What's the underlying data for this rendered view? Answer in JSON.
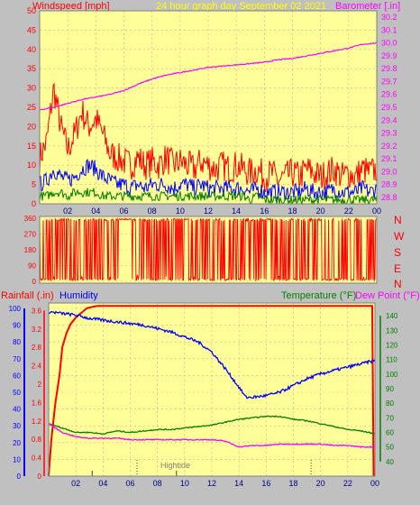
{
  "header": {
    "left": "Windspeed [mph]",
    "center": "24 hour graph day   September 02 2021",
    "right": "Barometer [.in]"
  },
  "compass": [
    "N",
    "W",
    "S",
    "E",
    "N"
  ],
  "bottom_header": {
    "rainfall": "Rainfall (.in)",
    "humidity": "Humidity",
    "temperature": "Temperature (°F)",
    "dewpoint": "Dew Point (°F)"
  },
  "hightide_label": "Hightide",
  "colors": {
    "panel_bg": "#ffff99",
    "frame": "#c0c0c0",
    "wind_gust": "#ff0000",
    "wind_avg": "#0000ff",
    "wind_low": "#008000",
    "barometer": "#ff00ff",
    "direction": "#ff0000",
    "rainfall": "#ff0000",
    "humidity": "#0000ff",
    "temperature": "#008000",
    "dewpoint": "#ff00ff"
  },
  "chart_data": [
    {
      "type": "line",
      "title": "24 hour graph day   September 02 2021",
      "xlabel": "",
      "x_ticks": [
        "02",
        "04",
        "06",
        "08",
        "10",
        "12",
        "14",
        "16",
        "18",
        "20",
        "22",
        "00"
      ],
      "xlim": [
        0,
        24
      ],
      "ylabel": "Windspeed [mph]",
      "y_ticks": [
        0,
        5,
        10,
        15,
        20,
        25,
        30,
        35,
        40,
        45,
        50
      ],
      "ylim": [
        0,
        50
      ],
      "y2label": "Barometer [.in]",
      "y2_ticks": [
        28.8,
        28.9,
        29.0,
        29.1,
        29.2,
        29.3,
        29.4,
        29.5,
        29.6,
        29.7,
        29.8,
        29.9,
        30.0,
        30.1,
        30.2
      ],
      "y2lim": [
        28.75,
        30.25
      ],
      "grid": true,
      "series": [
        {
          "name": "",
          "axis": "left",
          "color": "#ff0000",
          "x": [
            0,
            0.5,
            1,
            1.5,
            2,
            2.5,
            3,
            3.5,
            4,
            4.5,
            5,
            5.5,
            6,
            6.5,
            7,
            7.5,
            8,
            8.5,
            9,
            9.5,
            10,
            10.5,
            11,
            11.5,
            12,
            12.5,
            13,
            13.5,
            14,
            14.5,
            15,
            15.5,
            16,
            16.5,
            17,
            17.5,
            18,
            18.5,
            19,
            19.5,
            20,
            20.5,
            21,
            21.5,
            22,
            22.5,
            23,
            23.5,
            24
          ],
          "y": [
            12,
            16,
            30,
            20,
            14,
            18,
            24,
            20,
            22,
            18,
            13,
            12,
            11,
            10,
            12,
            10,
            11,
            10,
            12,
            10,
            11,
            10,
            9,
            11,
            10,
            9,
            10,
            9,
            10,
            9,
            8,
            9,
            7,
            8,
            6,
            7,
            8,
            7,
            9,
            8,
            7,
            8,
            9,
            7,
            8,
            7,
            9,
            8,
            9
          ]
        },
        {
          "name": "",
          "axis": "left",
          "color": "#0000ff",
          "x": [
            0,
            0.5,
            1,
            1.5,
            2,
            2.5,
            3,
            3.5,
            4,
            4.5,
            5,
            5.5,
            6,
            6.5,
            7,
            7.5,
            8,
            8.5,
            9,
            9.5,
            10,
            10.5,
            11,
            11.5,
            12,
            12.5,
            13,
            13.5,
            14,
            14.5,
            15,
            15.5,
            16,
            16.5,
            17,
            17.5,
            18,
            18.5,
            19,
            19.5,
            20,
            20.5,
            21,
            21.5,
            22,
            22.5,
            23,
            23.5,
            24
          ],
          "y": [
            5,
            6,
            9,
            7,
            6,
            7,
            9,
            10,
            9,
            7,
            6,
            5,
            5,
            4,
            5,
            4,
            5,
            5,
            5,
            4,
            5,
            5,
            4,
            5,
            4,
            4,
            4,
            4,
            4,
            4,
            3,
            4,
            3,
            3,
            3,
            3,
            3,
            3,
            4,
            3,
            3,
            3,
            4,
            3,
            3,
            3,
            4,
            3,
            4
          ]
        },
        {
          "name": "",
          "axis": "left",
          "color": "#008000",
          "x": [
            0,
            0.5,
            1,
            1.5,
            2,
            2.5,
            3,
            3.5,
            4,
            4.5,
            5,
            5.5,
            6,
            6.5,
            7,
            7.5,
            8,
            8.5,
            9,
            9.5,
            10,
            10.5,
            11,
            11.5,
            12,
            12.5,
            13,
            13.5,
            14,
            14.5,
            15,
            15.5,
            16,
            16.5,
            17,
            17.5,
            18,
            18.5,
            19,
            19.5,
            20,
            20.5,
            21,
            21.5,
            22,
            22.5,
            23,
            23.5,
            24
          ],
          "y": [
            2,
            2,
            3,
            3,
            2,
            3,
            3,
            3,
            3,
            2,
            2,
            2,
            2,
            2,
            2,
            2,
            2,
            2,
            2,
            2,
            2,
            2,
            2,
            2,
            2,
            2,
            2,
            2,
            2,
            2,
            1,
            2,
            1,
            1,
            1,
            1,
            1,
            1,
            1,
            1,
            1,
            1,
            1,
            1,
            1,
            1,
            1,
            1,
            1
          ]
        },
        {
          "name": "",
          "axis": "right",
          "color": "#ff00ff",
          "x": [
            0,
            1,
            2,
            3,
            4,
            5,
            6,
            7,
            8,
            9,
            10,
            11,
            12,
            13,
            14,
            15,
            16,
            17,
            18,
            19,
            20,
            21,
            22,
            23,
            24
          ],
          "y": [
            29.48,
            29.5,
            29.53,
            29.56,
            29.58,
            29.6,
            29.63,
            29.68,
            29.72,
            29.75,
            29.77,
            29.79,
            29.81,
            29.82,
            29.83,
            29.84,
            29.85,
            29.87,
            29.88,
            29.9,
            29.92,
            29.94,
            29.96,
            29.99,
            30.0
          ]
        }
      ]
    },
    {
      "type": "line",
      "title": "",
      "xlabel": "",
      "ylabel": "",
      "y_ticks": [
        0,
        90,
        180,
        270,
        360
      ],
      "ylim": [
        0,
        360
      ],
      "y2_ticks": [
        "N",
        "W",
        "S",
        "E",
        "N"
      ],
      "xlim": [
        0,
        24
      ],
      "grid": true,
      "series": [
        {
          "name": "",
          "color": "#ff0000",
          "x": [
            0,
            1,
            2,
            3,
            4,
            5,
            6,
            7,
            8,
            9,
            10,
            11,
            12,
            13,
            14,
            15,
            16,
            17,
            18,
            19,
            20,
            21,
            22,
            23,
            24
          ],
          "y": [
            340,
            20,
            350,
            10,
            345,
            15,
            355,
            5,
            350,
            20,
            340,
            10,
            355,
            15,
            345,
            25,
            350,
            10,
            340,
            20,
            355,
            15,
            345,
            10,
            350
          ]
        }
      ]
    },
    {
      "type": "line",
      "title": "",
      "xlabel": "",
      "x_ticks": [
        "02",
        "04",
        "06",
        "08",
        "10",
        "12",
        "14",
        "16",
        "18",
        "20",
        "22",
        "00"
      ],
      "xlim": [
        0,
        24
      ],
      "ylabel": "Rainfall (.in)",
      "y_ticks_rain": [
        0,
        0.4,
        0.8,
        1.2,
        1.6,
        2,
        2.4,
        2.8,
        3.2,
        3.6
      ],
      "ylim_rain": [
        0,
        4
      ],
      "y_ticks_humidity": [
        0,
        10,
        20,
        30,
        40,
        50,
        60,
        70,
        80,
        90,
        100
      ],
      "ylim_humidity": [
        0,
        100
      ],
      "y2label": "Temperature (°F)",
      "y2_ticks": [
        40,
        50,
        60,
        70,
        80,
        90,
        100,
        110,
        120,
        130,
        140
      ],
      "y2lim": [
        30,
        150
      ],
      "grid": true,
      "series": [
        {
          "name": "Rainfall (.in)",
          "axis": "rain",
          "color": "#ff0000",
          "x": [
            0,
            0.2,
            0.5,
            0.8,
            1,
            1.3,
            1.6,
            2,
            2.4,
            2.8,
            3.2,
            3.6,
            4,
            6,
            8,
            10,
            12,
            14,
            16,
            18,
            20,
            22,
            23.8,
            23.9
          ],
          "y": [
            0,
            0.8,
            1.6,
            2.2,
            2.8,
            3.1,
            3.3,
            3.45,
            3.55,
            3.65,
            3.68,
            3.7,
            3.7,
            3.7,
            3.7,
            3.7,
            3.7,
            3.7,
            3.7,
            3.7,
            3.7,
            3.7,
            3.7,
            0
          ]
        },
        {
          "name": "Humidity",
          "axis": "humidity",
          "color": "#0000ff",
          "x": [
            0,
            1,
            2,
            3,
            4,
            5,
            6,
            7,
            8,
            9,
            10,
            11,
            12,
            13,
            14,
            14.5,
            15,
            16,
            17,
            18,
            19,
            20,
            21,
            22,
            23,
            24
          ],
          "y": [
            98,
            97,
            96,
            94,
            93,
            92,
            91,
            90,
            88,
            86,
            83,
            80,
            74,
            64,
            53,
            47,
            47,
            48,
            50,
            54,
            58,
            61,
            63,
            65,
            67,
            69
          ]
        },
        {
          "name": "Temperature (°F)",
          "axis": "right",
          "color": "#008000",
          "x": [
            0,
            1,
            2,
            3,
            4,
            5,
            6,
            7,
            8,
            9,
            10,
            11,
            12,
            13,
            14,
            15,
            16,
            17,
            18,
            19,
            20,
            21,
            22,
            23,
            24
          ],
          "y": [
            66,
            63,
            60,
            60,
            59,
            61,
            60,
            61,
            62,
            62,
            63,
            64,
            65,
            67,
            69,
            70,
            71,
            71,
            69,
            68,
            66,
            64,
            62,
            61,
            59
          ]
        },
        {
          "name": "Dew Point (°F)",
          "axis": "right",
          "color": "#ff00ff",
          "x": [
            0,
            1,
            2,
            3,
            4,
            5,
            6,
            7,
            8,
            9,
            10,
            11,
            12,
            13,
            14,
            15,
            16,
            17,
            18,
            19,
            20,
            21,
            22,
            23,
            24
          ],
          "y": [
            66,
            60,
            57,
            56,
            56,
            56,
            55,
            55,
            55,
            55,
            55,
            55,
            55,
            54,
            50,
            51,
            51,
            52,
            52,
            52,
            52,
            51,
            51,
            50,
            50
          ]
        }
      ]
    }
  ]
}
